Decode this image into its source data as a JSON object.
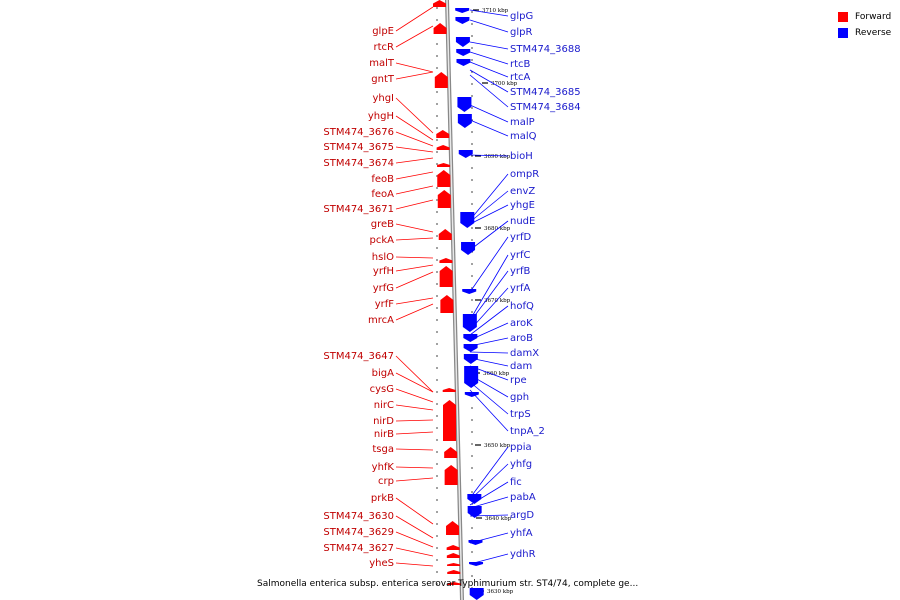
{
  "legend": {
    "forward_label": "Forward",
    "reverse_label": "Reverse",
    "forward_color": "#ff0000",
    "reverse_color": "#0000ff"
  },
  "caption": "Salmonella enterica subsp. enterica serovar Typhimurium str. ST4/74, complete ge...",
  "scale_ticks": [
    "3710 kbp",
    "3700 kbp",
    "3690 kbp",
    "3680 kbp",
    "3670 kbp",
    "3660 kbp",
    "3650 kbp",
    "3640 kbp",
    "3630 kbp"
  ],
  "forward_genes": [
    "glpE",
    "rtcR",
    "malT",
    "gntT",
    "yhgI",
    "yhgH",
    "STM474_3676",
    "STM474_3675",
    "STM474_3674",
    "feoB",
    "feoA",
    "STM474_3671",
    "greB",
    "pckA",
    "hslO",
    "yrfH",
    "yrfG",
    "yrfF",
    "mrcA",
    "STM474_3647",
    "bigA",
    "cysG",
    "nirC",
    "nirD",
    "nirB",
    "tsga",
    "yhfK",
    "crp",
    "prkB",
    "STM474_3630",
    "STM474_3629",
    "STM474_3627",
    "yheS"
  ],
  "reverse_genes": [
    "glpG",
    "glpR",
    "STM474_3688",
    "rtcB",
    "rtcA",
    "STM474_3685",
    "STM474_3684",
    "malP",
    "malQ",
    "bioH",
    "ompR",
    "envZ",
    "yhgE",
    "nudE",
    "yrfD",
    "yrfC",
    "yrfB",
    "yrfA",
    "hofQ",
    "aroK",
    "aroB",
    "damX",
    "dam",
    "rpe",
    "gph",
    "trpS",
    "tnpA_2",
    "ppia",
    "yhfg",
    "fic",
    "pabA",
    "argD",
    "yhfA",
    "ydhR"
  ]
}
